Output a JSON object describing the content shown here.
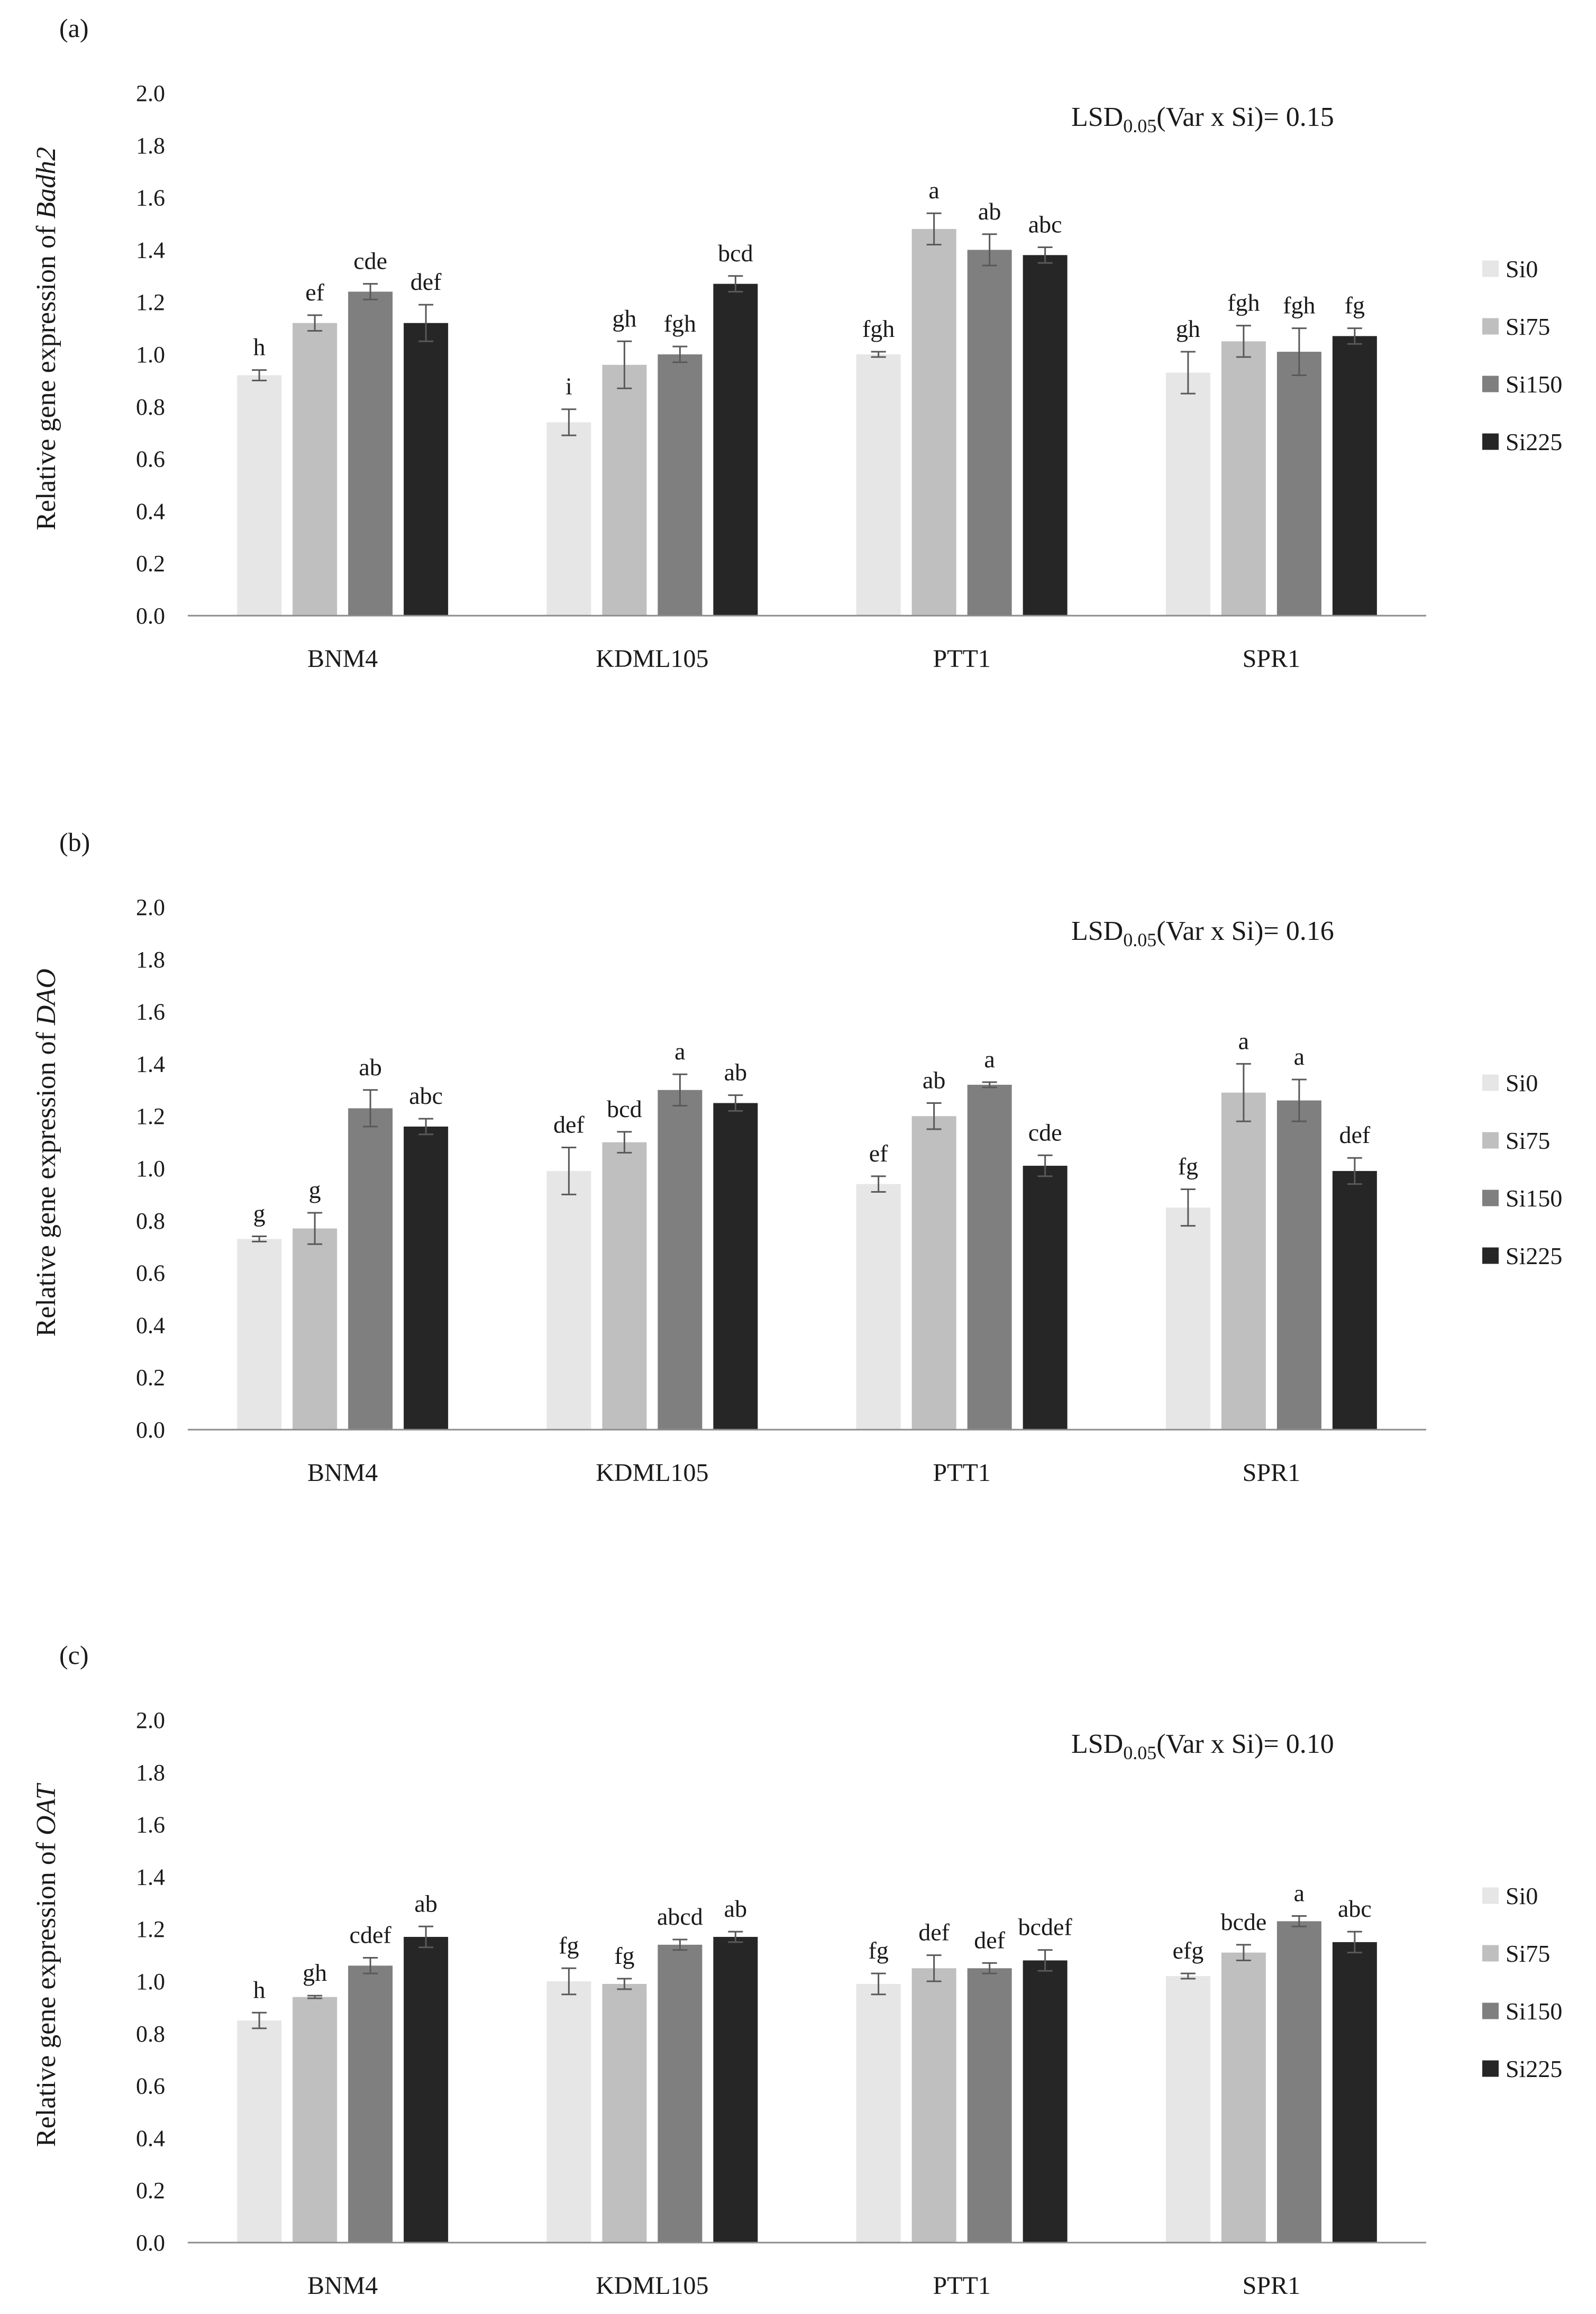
{
  "chart_data": [
    {
      "type": "bar",
      "panel_label": "(a)",
      "ylabel_prefix": "Relative gene expression of ",
      "gene": "Badh2",
      "lsd_prefix": "LSD",
      "lsd_subscript": "0.05",
      "lsd_suffix": "(Var x Si)= 0.15",
      "xlabel": "",
      "categories": [
        "BNM4",
        "KDML105",
        "PTT1",
        "SPR1"
      ],
      "ylim": [
        0,
        2.0
      ],
      "ytick_labels": [
        "0.0",
        "0.2",
        "0.4",
        "0.6",
        "0.8",
        "1.0",
        "1.2",
        "1.4",
        "1.6",
        "1.8",
        "2.0"
      ],
      "legend_position": "right",
      "series": [
        {
          "name": "Si0",
          "color": "#e7e6e6",
          "values": [
            0.92,
            0.74,
            1.0,
            0.93
          ],
          "errors": [
            0.02,
            0.05,
            0.01,
            0.08
          ],
          "letters": [
            "h",
            "i",
            "fgh",
            "gh"
          ]
        },
        {
          "name": "Si75",
          "color": "#bfbfbf",
          "values": [
            1.12,
            0.96,
            1.48,
            1.05
          ],
          "errors": [
            0.03,
            0.09,
            0.06,
            0.06
          ],
          "letters": [
            "ef",
            "gh",
            "a",
            "fgh"
          ]
        },
        {
          "name": "Si150",
          "color": "#7f7f7f",
          "values": [
            1.24,
            1.0,
            1.4,
            1.01
          ],
          "errors": [
            0.03,
            0.03,
            0.06,
            0.09
          ],
          "letters": [
            "cde",
            "fgh",
            "ab",
            "fgh"
          ]
        },
        {
          "name": "Si225",
          "color": "#262626",
          "values": [
            1.12,
            1.27,
            1.38,
            1.07
          ],
          "errors": [
            0.07,
            0.03,
            0.03,
            0.03
          ],
          "letters": [
            "def",
            "bcd",
            "abc",
            "fg"
          ]
        }
      ]
    },
    {
      "type": "bar",
      "panel_label": "(b)",
      "ylabel_prefix": "Relative gene expression of ",
      "gene": "DAO",
      "lsd_prefix": "LSD",
      "lsd_subscript": "0.05",
      "lsd_suffix": "(Var x Si)= 0.16",
      "xlabel": "",
      "categories": [
        "BNM4",
        "KDML105",
        "PTT1",
        "SPR1"
      ],
      "ylim": [
        0,
        2.0
      ],
      "ytick_labels": [
        "0.0",
        "0.2",
        "0.4",
        "0.6",
        "0.8",
        "1.0",
        "1.2",
        "1.4",
        "1.6",
        "1.8",
        "2.0"
      ],
      "legend_position": "right",
      "series": [
        {
          "name": "Si0",
          "color": "#e7e6e6",
          "values": [
            0.73,
            0.99,
            0.94,
            0.85
          ],
          "errors": [
            0.01,
            0.09,
            0.03,
            0.07
          ],
          "letters": [
            "g",
            "def",
            "ef",
            "fg"
          ]
        },
        {
          "name": "Si75",
          "color": "#bfbfbf",
          "values": [
            0.77,
            1.1,
            1.2,
            1.29
          ],
          "errors": [
            0.06,
            0.04,
            0.05,
            0.11
          ],
          "letters": [
            "g",
            "bcd",
            "ab",
            "a"
          ]
        },
        {
          "name": "Si150",
          "color": "#7f7f7f",
          "values": [
            1.23,
            1.3,
            1.32,
            1.26
          ],
          "errors": [
            0.07,
            0.06,
            0.01,
            0.08
          ],
          "letters": [
            "ab",
            "a",
            "a",
            "a"
          ]
        },
        {
          "name": "Si225",
          "color": "#262626",
          "values": [
            1.16,
            1.25,
            1.01,
            0.99
          ],
          "errors": [
            0.03,
            0.03,
            0.04,
            0.05
          ],
          "letters": [
            "abc",
            "ab",
            "cde",
            "def"
          ]
        }
      ]
    },
    {
      "type": "bar",
      "panel_label": "(c)",
      "ylabel_prefix": "Relative gene expression of ",
      "gene": "OAT",
      "lsd_prefix": "LSD",
      "lsd_subscript": "0.05",
      "lsd_suffix": "(Var x Si)= 0.10",
      "xlabel": "",
      "categories": [
        "BNM4",
        "KDML105",
        "PTT1",
        "SPR1"
      ],
      "ylim": [
        0,
        2.0
      ],
      "ytick_labels": [
        "0.0",
        "0.2",
        "0.4",
        "0.6",
        "0.8",
        "1.0",
        "1.2",
        "1.4",
        "1.6",
        "1.8",
        "2.0"
      ],
      "legend_position": "right",
      "series": [
        {
          "name": "Si0",
          "color": "#e7e6e6",
          "values": [
            0.85,
            1.0,
            0.99,
            1.02
          ],
          "errors": [
            0.03,
            0.05,
            0.04,
            0.01
          ],
          "letters": [
            "h",
            "fg",
            "fg",
            "efg"
          ]
        },
        {
          "name": "Si75",
          "color": "#bfbfbf",
          "values": [
            0.94,
            0.99,
            1.05,
            1.11
          ],
          "errors": [
            0.005,
            0.02,
            0.05,
            0.03
          ],
          "letters": [
            "gh",
            "fg",
            "def",
            "bcde"
          ]
        },
        {
          "name": "Si150",
          "color": "#7f7f7f",
          "values": [
            1.06,
            1.14,
            1.05,
            1.23
          ],
          "errors": [
            0.03,
            0.02,
            0.02,
            0.02
          ],
          "letters": [
            "cdef",
            "abcd",
            "def",
            "a"
          ]
        },
        {
          "name": "Si225",
          "color": "#262626",
          "values": [
            1.17,
            1.17,
            1.08,
            1.15
          ],
          "errors": [
            0.04,
            0.02,
            0.04,
            0.04
          ],
          "letters": [
            "ab",
            "ab",
            "bcdef",
            "abc"
          ]
        }
      ]
    }
  ]
}
